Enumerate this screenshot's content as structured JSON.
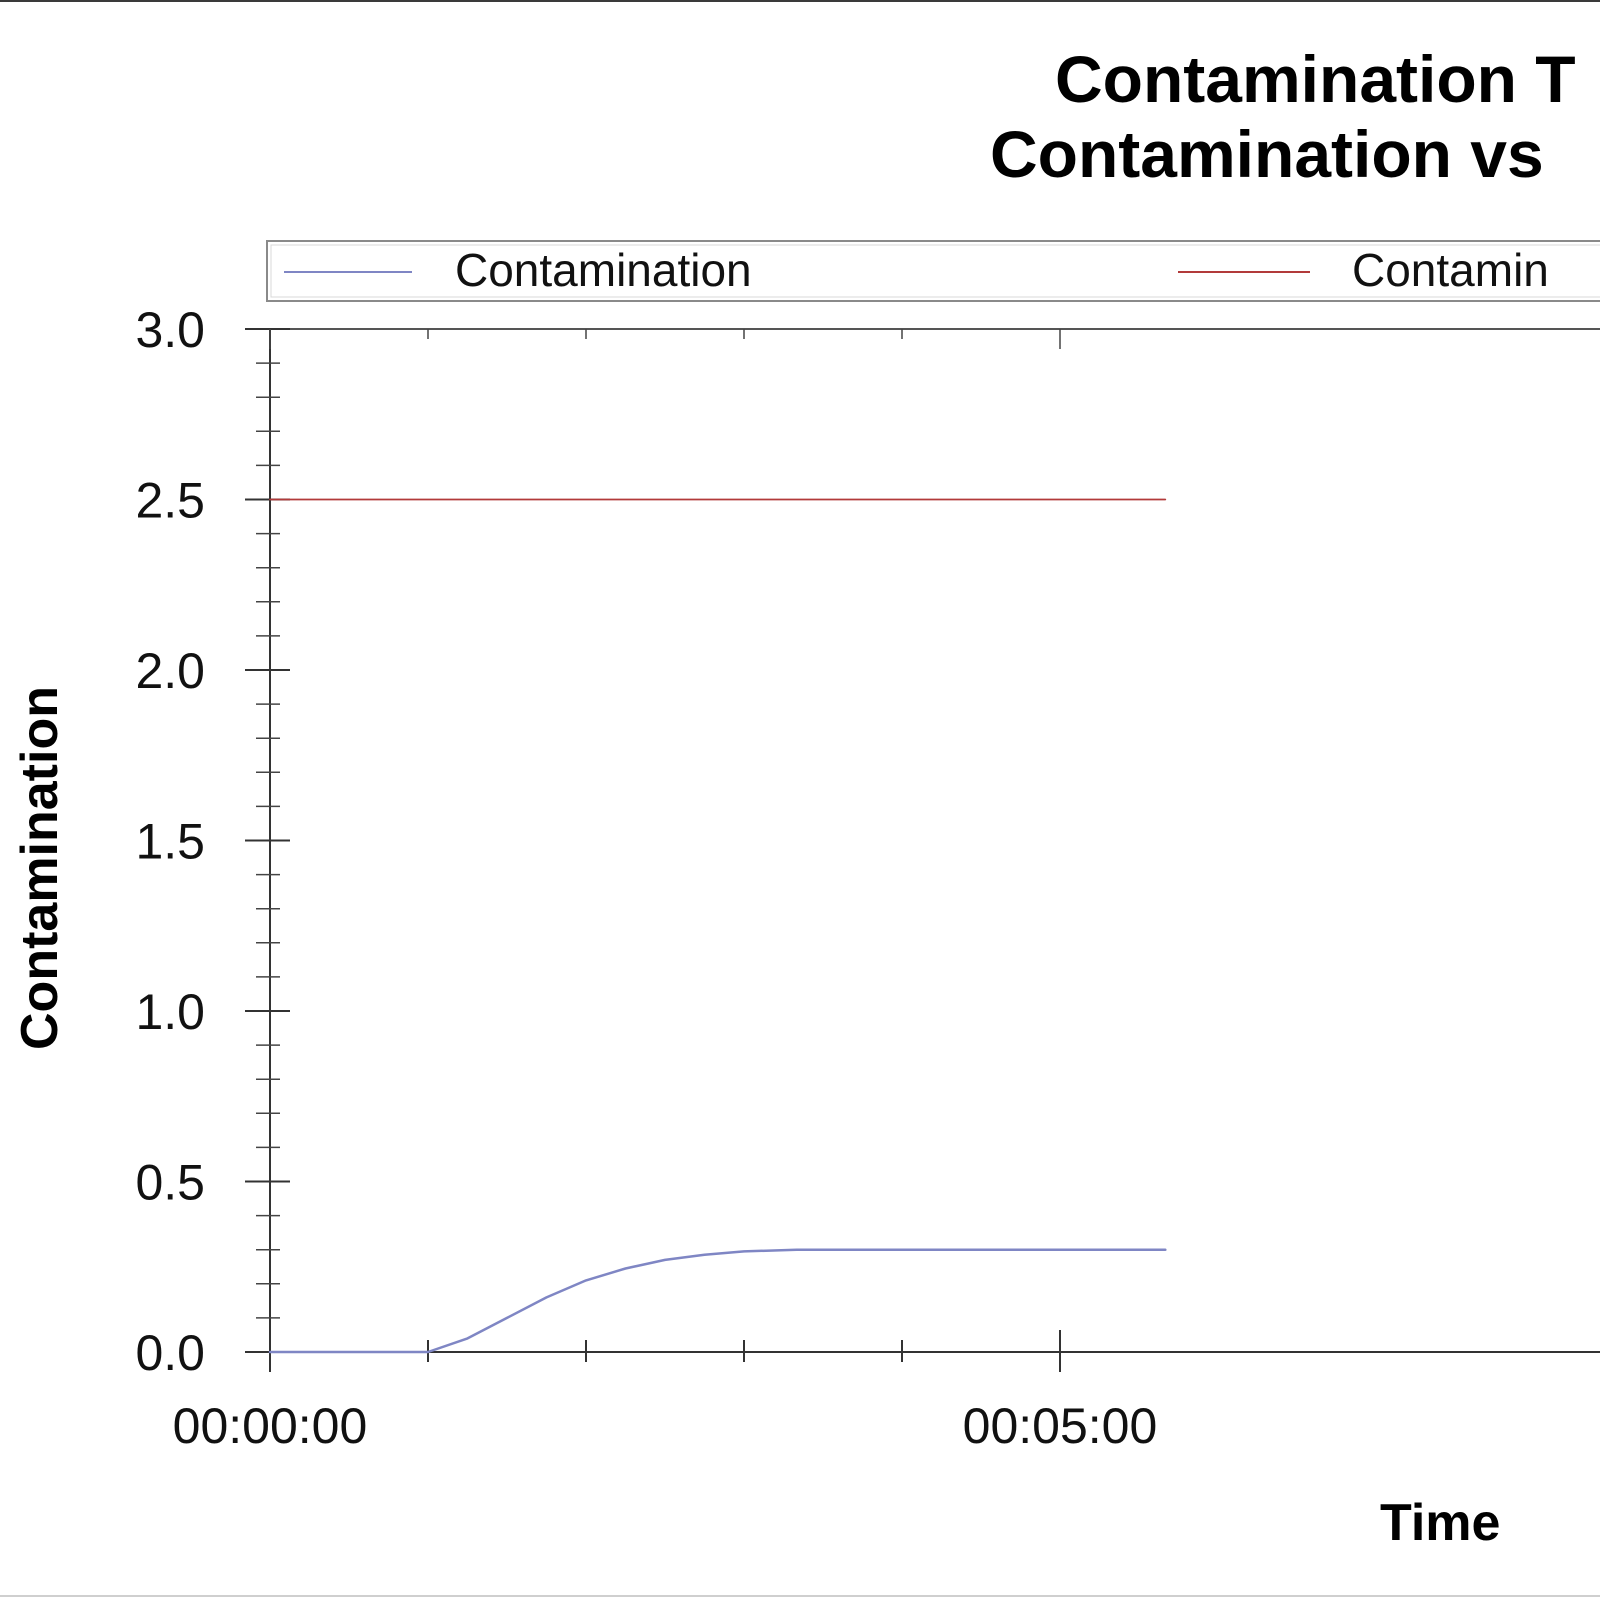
{
  "chart_data": {
    "type": "line",
    "title_lines": [
      "Contamination T",
      "Contamination vs"
    ],
    "xlabel": "Time",
    "ylabel": "Contamination",
    "x_tick_labels": [
      {
        "label": "00:00:00",
        "seconds": 0
      },
      {
        "label": "00:05:00",
        "seconds": 300
      }
    ],
    "x_range_seconds": [
      0,
      340
    ],
    "ylim": [
      0,
      3.0
    ],
    "y_ticks": [
      "0.0",
      "0.5",
      "1.0",
      "1.5",
      "2.0",
      "2.5",
      "3.0"
    ],
    "grid": false,
    "legend_position": "top",
    "series": [
      {
        "name": "Contamination",
        "color": "#7f86c4",
        "x_seconds": [
          0,
          30,
          60,
          75,
          90,
          105,
          120,
          135,
          150,
          165,
          180,
          200,
          230,
          260,
          300,
          340
        ],
        "values": [
          0.0,
          0.0,
          0.0,
          0.04,
          0.1,
          0.16,
          0.21,
          0.245,
          0.27,
          0.285,
          0.295,
          0.3,
          0.3,
          0.3,
          0.3,
          0.3
        ]
      },
      {
        "name": "Contamin",
        "color": "#b23a3a",
        "x_seconds": [
          0,
          340
        ],
        "values": [
          2.5,
          2.5
        ]
      }
    ]
  }
}
